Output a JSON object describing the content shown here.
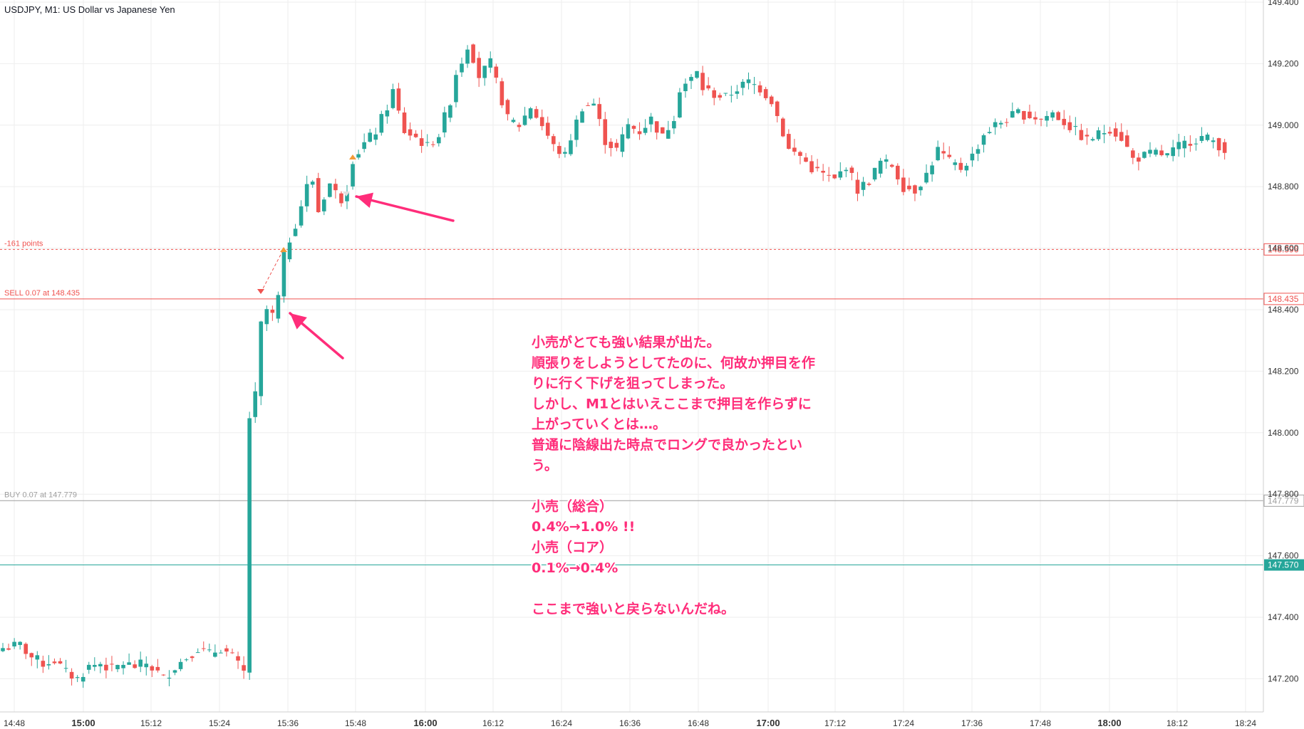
{
  "chart_data": {
    "type": "candlestick",
    "title": "USDJPY, M1: US Dollar vs Japanese Yen",
    "timeframe": "M1",
    "ylim": [
      147.13,
      149.4
    ],
    "y_ticks": [
      "149.400",
      "149.200",
      "149.000",
      "148.800",
      "148.600",
      "148.400",
      "148.200",
      "148.000",
      "147.800",
      "147.600",
      "147.400",
      "147.200"
    ],
    "x_ticks": [
      {
        "label": "14:48",
        "bold": false
      },
      {
        "label": "15:00",
        "bold": true
      },
      {
        "label": "15:12",
        "bold": false
      },
      {
        "label": "15:24",
        "bold": false
      },
      {
        "label": "15:36",
        "bold": false
      },
      {
        "label": "15:48",
        "bold": false
      },
      {
        "label": "16:00",
        "bold": true
      },
      {
        "label": "16:12",
        "bold": false
      },
      {
        "label": "16:24",
        "bold": false
      },
      {
        "label": "16:36",
        "bold": false
      },
      {
        "label": "16:48",
        "bold": false
      },
      {
        "label": "17:00",
        "bold": true
      },
      {
        "label": "17:12",
        "bold": false
      },
      {
        "label": "17:24",
        "bold": false
      },
      {
        "label": "17:36",
        "bold": false
      },
      {
        "label": "17:48",
        "bold": false
      },
      {
        "label": "18:00",
        "bold": true
      },
      {
        "label": "18:12",
        "bold": false
      },
      {
        "label": "18:24",
        "bold": false
      }
    ],
    "close_path": [
      [
        0,
        147.3
      ],
      [
        3,
        147.31
      ],
      [
        5,
        147.27
      ],
      [
        7,
        147.25
      ],
      [
        9,
        147.26
      ],
      [
        11,
        147.22
      ],
      [
        13,
        147.2
      ],
      [
        15,
        147.24
      ],
      [
        17,
        147.25
      ],
      [
        19,
        147.23
      ],
      [
        21,
        147.25
      ],
      [
        23,
        147.24
      ],
      [
        25,
        147.25
      ],
      [
        27,
        147.22
      ],
      [
        28,
        147.2
      ],
      [
        30,
        147.24
      ],
      [
        32,
        147.27
      ],
      [
        34,
        147.3
      ],
      [
        36,
        147.28
      ],
      [
        38,
        147.3
      ],
      [
        40,
        147.27
      ],
      [
        42,
        147.22
      ],
      [
        43,
        148.05
      ],
      [
        44,
        148.12
      ],
      [
        45,
        148.35
      ],
      [
        46,
        148.4
      ],
      [
        47,
        148.38
      ],
      [
        48,
        148.44
      ],
      [
        49,
        148.57
      ],
      [
        50,
        148.63
      ],
      [
        51,
        148.68
      ],
      [
        52,
        148.74
      ],
      [
        53,
        148.8
      ],
      [
        54,
        148.82
      ],
      [
        55,
        148.72
      ],
      [
        56,
        148.77
      ],
      [
        57,
        148.81
      ],
      [
        58,
        148.78
      ],
      [
        59,
        148.76
      ],
      [
        60,
        148.8
      ],
      [
        61,
        148.89
      ],
      [
        63,
        148.94
      ],
      [
        65,
        148.98
      ],
      [
        67,
        149.06
      ],
      [
        68,
        149.11
      ],
      [
        69,
        149.04
      ],
      [
        70,
        148.98
      ],
      [
        72,
        148.96
      ],
      [
        74,
        148.93
      ],
      [
        76,
        148.97
      ],
      [
        78,
        149.08
      ],
      [
        79,
        149.17
      ],
      [
        80,
        149.21
      ],
      [
        81,
        149.26
      ],
      [
        82,
        149.22
      ],
      [
        83,
        149.16
      ],
      [
        85,
        149.2
      ],
      [
        86,
        149.14
      ],
      [
        88,
        149.02
      ],
      [
        90,
        149.0
      ],
      [
        92,
        149.06
      ],
      [
        94,
        149.0
      ],
      [
        96,
        148.93
      ],
      [
        98,
        148.9
      ],
      [
        99,
        148.96
      ],
      [
        101,
        149.06
      ],
      [
        103,
        149.07
      ],
      [
        105,
        148.95
      ],
      [
        107,
        148.92
      ],
      [
        109,
        149.0
      ],
      [
        111,
        148.98
      ],
      [
        113,
        149.02
      ],
      [
        115,
        148.96
      ],
      [
        117,
        149.03
      ],
      [
        118,
        149.12
      ],
      [
        120,
        149.15
      ],
      [
        121,
        149.17
      ],
      [
        122,
        149.12
      ],
      [
        124,
        149.1
      ],
      [
        126,
        149.09
      ],
      [
        128,
        149.12
      ],
      [
        130,
        149.14
      ],
      [
        132,
        149.12
      ],
      [
        134,
        149.08
      ],
      [
        135,
        149.03
      ],
      [
        137,
        148.92
      ],
      [
        139,
        148.9
      ],
      [
        141,
        148.86
      ],
      [
        143,
        148.84
      ],
      [
        145,
        148.82
      ],
      [
        147,
        148.87
      ],
      [
        149,
        148.79
      ],
      [
        151,
        148.82
      ],
      [
        153,
        148.88
      ],
      [
        155,
        148.87
      ],
      [
        157,
        148.8
      ],
      [
        159,
        148.79
      ],
      [
        161,
        148.84
      ],
      [
        163,
        148.92
      ],
      [
        165,
        148.88
      ],
      [
        167,
        148.86
      ],
      [
        169,
        148.9
      ],
      [
        171,
        148.97
      ],
      [
        173,
        149.0
      ],
      [
        175,
        149.02
      ],
      [
        177,
        149.04
      ],
      [
        179,
        149.03
      ],
      [
        181,
        149.02
      ],
      [
        183,
        149.04
      ],
      [
        185,
        149.01
      ],
      [
        187,
        148.98
      ],
      [
        189,
        148.95
      ],
      [
        191,
        148.97
      ],
      [
        193,
        148.99
      ],
      [
        195,
        148.96
      ],
      [
        197,
        148.89
      ],
      [
        199,
        148.9
      ],
      [
        201,
        148.91
      ],
      [
        203,
        148.9
      ],
      [
        205,
        148.93
      ],
      [
        207,
        148.95
      ],
      [
        209,
        148.96
      ],
      [
        211,
        148.95
      ],
      [
        213,
        148.92
      ]
    ],
    "horizontal_lines": [
      {
        "label": "-161 points",
        "price": 148.596,
        "price_label": "148.596",
        "color": "#ef5350",
        "style": "dotted"
      },
      {
        "label": "SELL 0.07 at 148.435",
        "price": 148.435,
        "price_label": "148.435",
        "color": "#ef5350",
        "style": "solid"
      },
      {
        "label": "BUY 0.07 at 147.779",
        "price": 147.779,
        "price_label": "147.779",
        "color": "#9e9e9e",
        "style": "solid"
      },
      {
        "label": "",
        "price": 147.57,
        "price_label": "147.570",
        "color": "#26a69a",
        "style": "solid"
      }
    ],
    "annotation_lines": [
      "小売がとても強い結果が出た。",
      "順張りをしようとしてたのに、何故か押目を作",
      "りに行く下げを狙ってしまった。",
      "しかし、M1とはいえここまで押目を作らずに",
      "上がっていくとは…。",
      "普通に陰線出た時点でロングで良かったとい",
      "う。",
      "",
      "小売（総合）",
      "0.4%→1.0% !!",
      "小売（コア）",
      "0.1%→0.4%",
      "",
      "ここまで強いと戻らないんだね。"
    ],
    "colors": {
      "up": "#26a69a",
      "down": "#ef5350",
      "grid": "#eeeeee",
      "axis_text": "#333333",
      "note": "#ff2d7a"
    }
  }
}
